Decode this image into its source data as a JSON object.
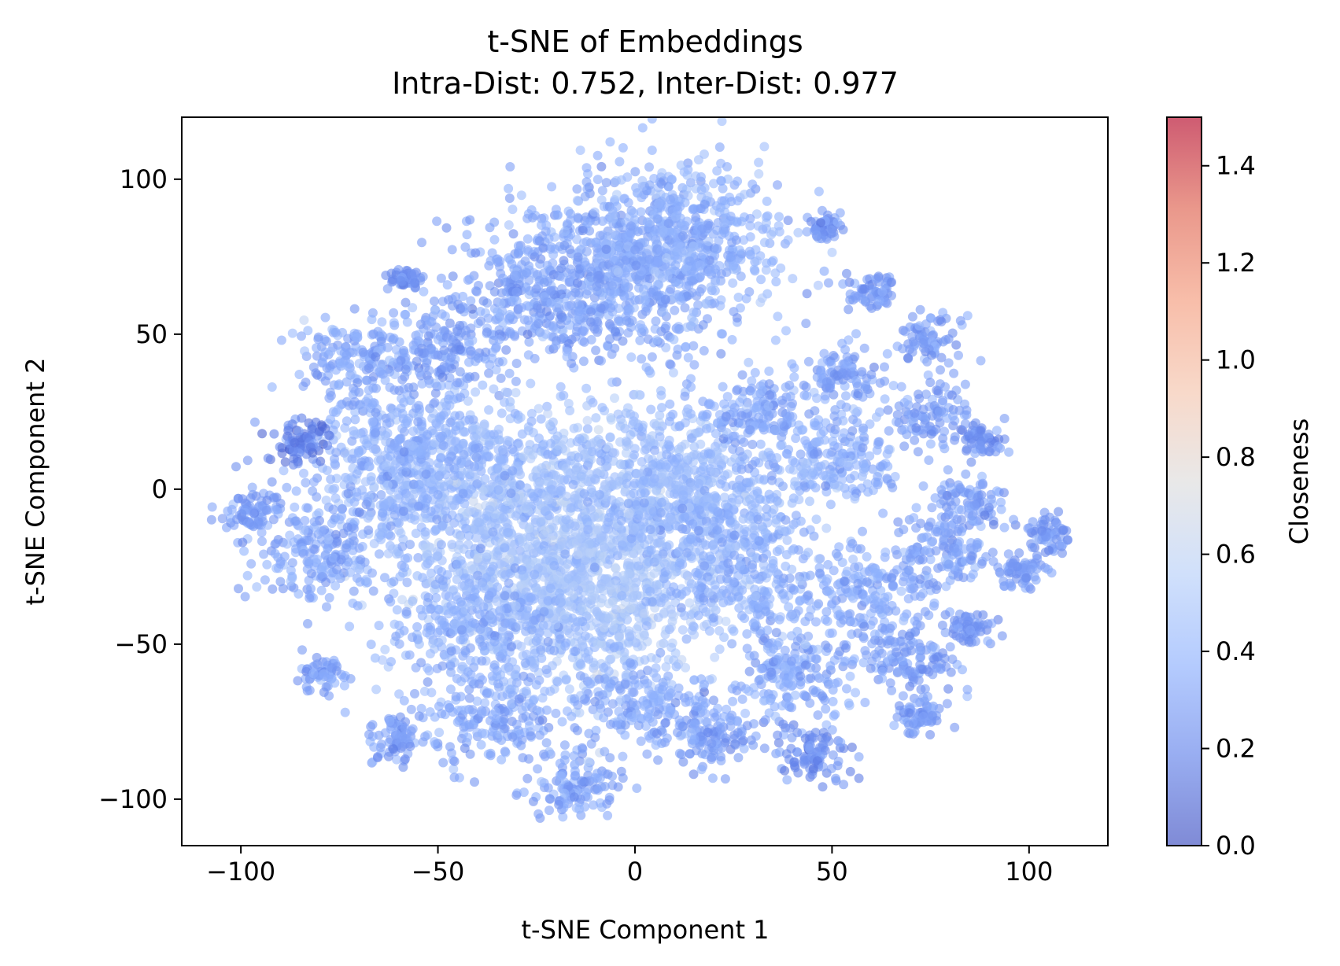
{
  "chart_data": {
    "type": "scatter",
    "title": "t-SNE of Embeddings",
    "subtitle": "Intra-Dist: 0.752, Inter-Dist: 0.977",
    "xlabel": "t-SNE Component 1",
    "ylabel": "t-SNE Component 2",
    "xlim": [
      -115,
      120
    ],
    "ylim": [
      -115,
      120
    ],
    "xticks": [
      -100,
      -50,
      0,
      50,
      100
    ],
    "yticks": [
      -100,
      -50,
      0,
      50,
      100
    ],
    "xtick_labels": [
      "−100",
      "−50",
      "0",
      "50",
      "100"
    ],
    "ytick_labels": [
      "−100",
      "−50",
      "0",
      "50",
      "100"
    ],
    "grid": false,
    "colorbar": {
      "label": "Closeness",
      "range": [
        0.0,
        1.5
      ],
      "ticks": [
        0.0,
        0.2,
        0.4,
        0.6,
        0.8,
        1.0,
        1.2,
        1.4
      ],
      "tick_labels": [
        "0.0",
        "0.2",
        "0.4",
        "0.6",
        "0.8",
        "1.0",
        "1.2",
        "1.4"
      ],
      "colormap": "coolwarm"
    },
    "clusters": [
      {
        "x": 0,
        "y": 72,
        "spread": 15,
        "closeness": 0.33
      },
      {
        "x": 10,
        "y": 80,
        "spread": 14,
        "closeness": 0.38
      },
      {
        "x": -25,
        "y": 62,
        "spread": 12,
        "closeness": 0.32
      },
      {
        "x": -40,
        "y": 2,
        "spread": 16,
        "closeness": 0.42
      },
      {
        "x": -20,
        "y": -18,
        "spread": 18,
        "closeness": 0.5
      },
      {
        "x": 5,
        "y": 2,
        "spread": 15,
        "closeness": 0.44
      },
      {
        "x": -60,
        "y": 8,
        "spread": 12,
        "closeness": 0.38
      },
      {
        "x": -80,
        "y": -20,
        "spread": 9,
        "closeness": 0.34
      },
      {
        "x": -98,
        "y": -8,
        "spread": 4,
        "closeness": 0.3
      },
      {
        "x": -70,
        "y": 40,
        "spread": 8,
        "closeness": 0.34
      },
      {
        "x": -50,
        "y": 45,
        "spread": 7,
        "closeness": 0.32
      },
      {
        "x": -10,
        "y": -40,
        "spread": 14,
        "closeness": 0.5
      },
      {
        "x": -40,
        "y": -45,
        "spread": 12,
        "closeness": 0.38
      },
      {
        "x": -15,
        "y": -95,
        "spread": 6,
        "closeness": 0.33
      },
      {
        "x": -35,
        "y": -75,
        "spread": 8,
        "closeness": 0.34
      },
      {
        "x": 0,
        "y": -70,
        "spread": 8,
        "closeness": 0.36
      },
      {
        "x": 20,
        "y": -80,
        "spread": 6,
        "closeness": 0.3
      },
      {
        "x": 40,
        "y": -60,
        "spread": 8,
        "closeness": 0.34
      },
      {
        "x": 30,
        "y": -30,
        "spread": 10,
        "closeness": 0.38
      },
      {
        "x": 20,
        "y": -10,
        "spread": 10,
        "closeness": 0.4
      },
      {
        "x": 50,
        "y": 10,
        "spread": 9,
        "closeness": 0.38
      },
      {
        "x": 60,
        "y": -35,
        "spread": 8,
        "closeness": 0.34
      },
      {
        "x": 70,
        "y": -55,
        "spread": 6,
        "closeness": 0.3
      },
      {
        "x": 78,
        "y": -20,
        "spread": 6,
        "closeness": 0.32
      },
      {
        "x": 85,
        "y": -5,
        "spread": 5,
        "closeness": 0.3
      },
      {
        "x": 105,
        "y": -15,
        "spread": 3,
        "closeness": 0.28
      },
      {
        "x": 98,
        "y": -27,
        "spread": 3,
        "closeness": 0.28
      },
      {
        "x": 75,
        "y": 48,
        "spread": 4,
        "closeness": 0.3
      },
      {
        "x": 52,
        "y": 37,
        "spread": 5,
        "closeness": 0.3
      },
      {
        "x": 30,
        "y": 25,
        "spread": 7,
        "closeness": 0.34
      },
      {
        "x": 60,
        "y": 63,
        "spread": 3,
        "closeness": 0.28
      },
      {
        "x": 48,
        "y": 85,
        "spread": 2,
        "closeness": 0.26
      },
      {
        "x": 88,
        "y": 16,
        "spread": 3,
        "closeness": 0.26
      },
      {
        "x": 75,
        "y": 25,
        "spread": 5,
        "closeness": 0.3
      },
      {
        "x": 45,
        "y": -85,
        "spread": 5,
        "closeness": 0.24
      },
      {
        "x": 72,
        "y": -73,
        "spread": 3,
        "closeness": 0.28
      },
      {
        "x": -80,
        "y": -60,
        "spread": 3,
        "closeness": 0.3
      },
      {
        "x": -85,
        "y": 15,
        "spread": 4,
        "closeness": 0.18
      },
      {
        "x": -58,
        "y": 68,
        "spread": 2,
        "closeness": 0.26
      },
      {
        "x": -60,
        "y": -80,
        "spread": 4,
        "closeness": 0.3
      },
      {
        "x": 85,
        "y": -45,
        "spread": 3,
        "closeness": 0.26
      }
    ]
  }
}
